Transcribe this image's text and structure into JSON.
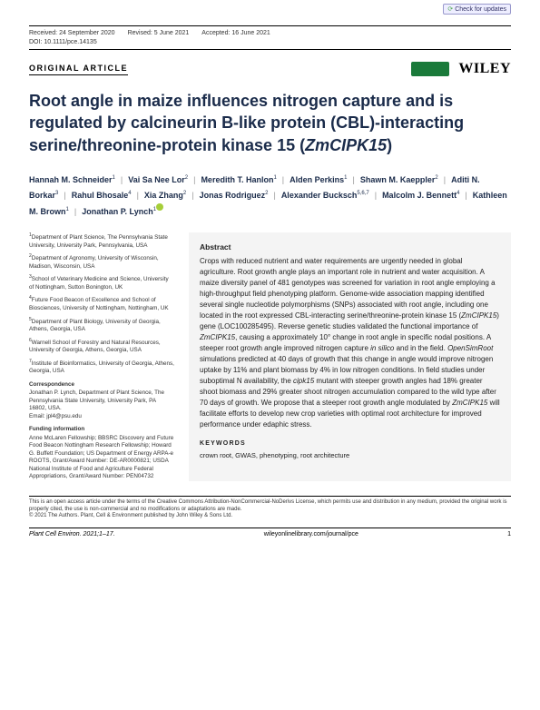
{
  "updates_badge": "Check for updates",
  "meta": {
    "received": "Received: 24 September 2020",
    "revised": "Revised: 5 June 2021",
    "accepted": "Accepted: 16 June 2021"
  },
  "doi": "DOI: 10.1111/pce.14135",
  "article_type": "ORIGINAL ARTICLE",
  "publisher": "WILEY",
  "title_pre": "Root angle in maize influences nitrogen capture and is regulated by calcineurin B-like protein (CBL)-interacting serine/threonine-protein kinase 15 (",
  "title_gene": "ZmCIPK15",
  "title_post": ")",
  "authors": [
    {
      "n": "Hannah M. Schneider",
      "s": "1"
    },
    {
      "n": "Vai Sa Nee Lor",
      "s": "2"
    },
    {
      "n": "Meredith T. Hanlon",
      "s": "1"
    },
    {
      "n": "Alden Perkins",
      "s": "1"
    },
    {
      "n": "Shawn M. Kaeppler",
      "s": "2"
    },
    {
      "n": "Aditi N. Borkar",
      "s": "3"
    },
    {
      "n": "Rahul Bhosale",
      "s": "4"
    },
    {
      "n": "Xia Zhang",
      "s": "2"
    },
    {
      "n": "Jonas Rodriguez",
      "s": "2"
    },
    {
      "n": "Alexander Bucksch",
      "s": "5,6,7"
    },
    {
      "n": "Malcolm J. Bennett",
      "s": "4"
    },
    {
      "n": "Kathleen M. Brown",
      "s": "1"
    },
    {
      "n": "Jonathan P. Lynch",
      "s": "1",
      "orcid": true
    }
  ],
  "affiliations": [
    {
      "s": "1",
      "t": "Department of Plant Science, The Pennsylvania State University, University Park, Pennsylvania, USA"
    },
    {
      "s": "2",
      "t": "Department of Agronomy, University of Wisconsin, Madison, Wisconsin, USA"
    },
    {
      "s": "3",
      "t": "School of Veterinary Medicine and Science, University of Nottingham, Sutton Bonington, UK"
    },
    {
      "s": "4",
      "t": "Future Food Beacon of Excellence and School of Biosciences, University of Nottingham, Nottingham, UK"
    },
    {
      "s": "5",
      "t": "Department of Plant Biology, University of Georgia, Athens, Georgia, USA"
    },
    {
      "s": "6",
      "t": "Warnell School of Forestry and Natural Resources, University of Georgia, Athens, Georgia, USA"
    },
    {
      "s": "7",
      "t": "Institute of Bioinformatics, University of Georgia, Athens, Georgia, USA"
    }
  ],
  "corr_head": "Correspondence",
  "corr_body": "Jonathan P. Lynch, Department of Plant Science, The Pennsylvania State University, University Park, PA 16802, USA.",
  "corr_email": "Email: jpl4@psu.edu",
  "fund_head": "Funding information",
  "fund_body": "Anne McLaren Fellowship; BBSRC Discovery and Future Food Beacon Nottingham Research Fellowship; Howard G. Buffett Foundation; US Department of Energy ARPA-e ROOTS, Grant/Award Number: DE-AR0000821; USDA National Institute of Food and Agriculture Federal Appropriations, Grant/Award Number: PEN04732",
  "abs_head": "Abstract",
  "abstract": "Crops with reduced nutrient and water requirements are urgently needed in global agriculture. Root growth angle plays an important role in nutrient and water acquisition. A maize diversity panel of 481 genotypes was screened for variation in root angle employing a high-throughput field phenotyping platform. Genome-wide association mapping identified several single nucleotide polymorphisms (SNPs) associated with root angle, including one located in the root expressed CBL-interacting serine/threonine-protein kinase 15 (<em>ZmCIPK15</em>) gene (LOC100285495). Reverse genetic studies validated the functional importance of <em>ZmCIPK15</em>, causing a approximately 10° change in root angle in specific nodal positions. A steeper root growth angle improved nitrogen capture <em>in silico</em> and in the field. <em>OpenSimRoot</em> simulations predicted at 40 days of growth that this change in angle would improve nitrogen uptake by 11% and plant biomass by 4% in low nitrogen conditions. In field studies under suboptimal N availability, the <em>cipk15</em> mutant with steeper growth angles had 18% greater shoot biomass and 29% greater shoot nitrogen accumulation compared to the wild type after 70 days of growth. We propose that a steeper root growth angle modulated by <em>ZmCIPK15</em> will facilitate efforts to develop new crop varieties with optimal root architecture for improved performance under edaphic stress.",
  "kw_head": "KEYWORDS",
  "keywords": "crown root, GWAS, phenotyping, root architecture",
  "license1": "This is an open access article under the terms of the Creative Commons Attribution-NonCommercial-NoDerivs License, which permits use and distribution in any medium, provided the original work is properly cited, the use is non-commercial and no modifications or adaptations are made.",
  "license2": "© 2021 The Authors. Plant, Cell & Environment published by John Wiley & Sons Ltd.",
  "footer": {
    "journal": "Plant Cell Environ. 2021;1–17.",
    "url": "wileyonlinelibrary.com/journal/pce",
    "page": "1"
  }
}
